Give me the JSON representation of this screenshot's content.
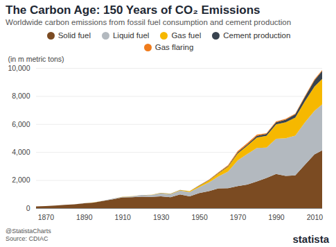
{
  "chart_data": {
    "type": "area",
    "title": "The Carbon Age: 150 Years of CO₂ Emissions",
    "subtitle": "Worldwide carbon emissions from fossil fuel consumption and cement production",
    "y_label": "(in m metric tons)",
    "credit": "@StatistaCharts",
    "source": "Source: CDIAC",
    "brand": "statista",
    "stacked": true,
    "grid": true,
    "legend": "top",
    "x": [
      1865,
      1870,
      1875,
      1880,
      1885,
      1890,
      1895,
      1900,
      1905,
      1910,
      1915,
      1920,
      1925,
      1930,
      1935,
      1940,
      1945,
      1950,
      1955,
      1960,
      1965,
      1970,
      1975,
      1980,
      1985,
      1990,
      1995,
      2000,
      2005,
      2010,
      2014
    ],
    "xlim": [
      1865,
      2014
    ],
    "xticks": [
      1870,
      1890,
      1910,
      1930,
      1950,
      1970,
      1990,
      2010
    ],
    "ylim": [
      0,
      10000
    ],
    "yticks": [
      0,
      {
        "value": 2000,
        "label": "2,000"
      },
      {
        "value": 4000,
        "label": "4,000"
      },
      {
        "value": 6000,
        "label": "6,000"
      },
      {
        "value": 8000,
        "label": "8,000"
      },
      {
        "value": 10000,
        "label": "10,000"
      }
    ],
    "series": [
      {
        "name": "Solid fuel",
        "color": "#7b4b22",
        "values": [
          129,
          147,
          188,
          230,
          273,
          345,
          392,
          515,
          634,
          767,
          784,
          813,
          809,
          843,
          775,
          975,
          838,
          1078,
          1211,
          1410,
          1421,
          1571,
          1680,
          1902,
          2150,
          2432,
          2307,
          2340,
          3090,
          3842,
          4117
        ]
      },
      {
        "name": "Liquid fuel",
        "color": "#b3b9bf",
        "values": [
          0,
          1,
          1,
          3,
          4,
          8,
          10,
          16,
          24,
          43,
          60,
          98,
          128,
          204,
          215,
          275,
          313,
          423,
          621,
          849,
          1192,
          1838,
          2182,
          2388,
          2164,
          2514,
          2681,
          2833,
          3030,
          3107,
          3280
        ]
      },
      {
        "name": "Gas fuel",
        "color": "#f6b800",
        "values": [
          0,
          0,
          0,
          0,
          1,
          2,
          2,
          3,
          4,
          6,
          7,
          10,
          14,
          28,
          28,
          42,
          62,
          97,
          143,
          227,
          340,
          493,
          590,
          752,
          850,
          1026,
          1133,
          1292,
          1500,
          1731,
          1823
        ]
      },
      {
        "name": "Cement production",
        "color": "#38434f",
        "values": [
          0,
          0,
          0,
          0,
          0,
          0,
          0,
          0,
          2,
          4,
          4,
          4,
          6,
          8,
          7,
          12,
          6,
          18,
          30,
          43,
          60,
          78,
          95,
          120,
          130,
          157,
          193,
          226,
          310,
          446,
          568
        ]
      },
      {
        "name": "Gas flaring",
        "color": "#f07c1c",
        "values": [
          0,
          0,
          0,
          0,
          0,
          0,
          0,
          0,
          0,
          0,
          0,
          0,
          0,
          0,
          0,
          0,
          0,
          23,
          30,
          39,
          55,
          87,
          90,
          85,
          50,
          60,
          60,
          60,
          66,
          66,
          68
        ]
      }
    ]
  }
}
